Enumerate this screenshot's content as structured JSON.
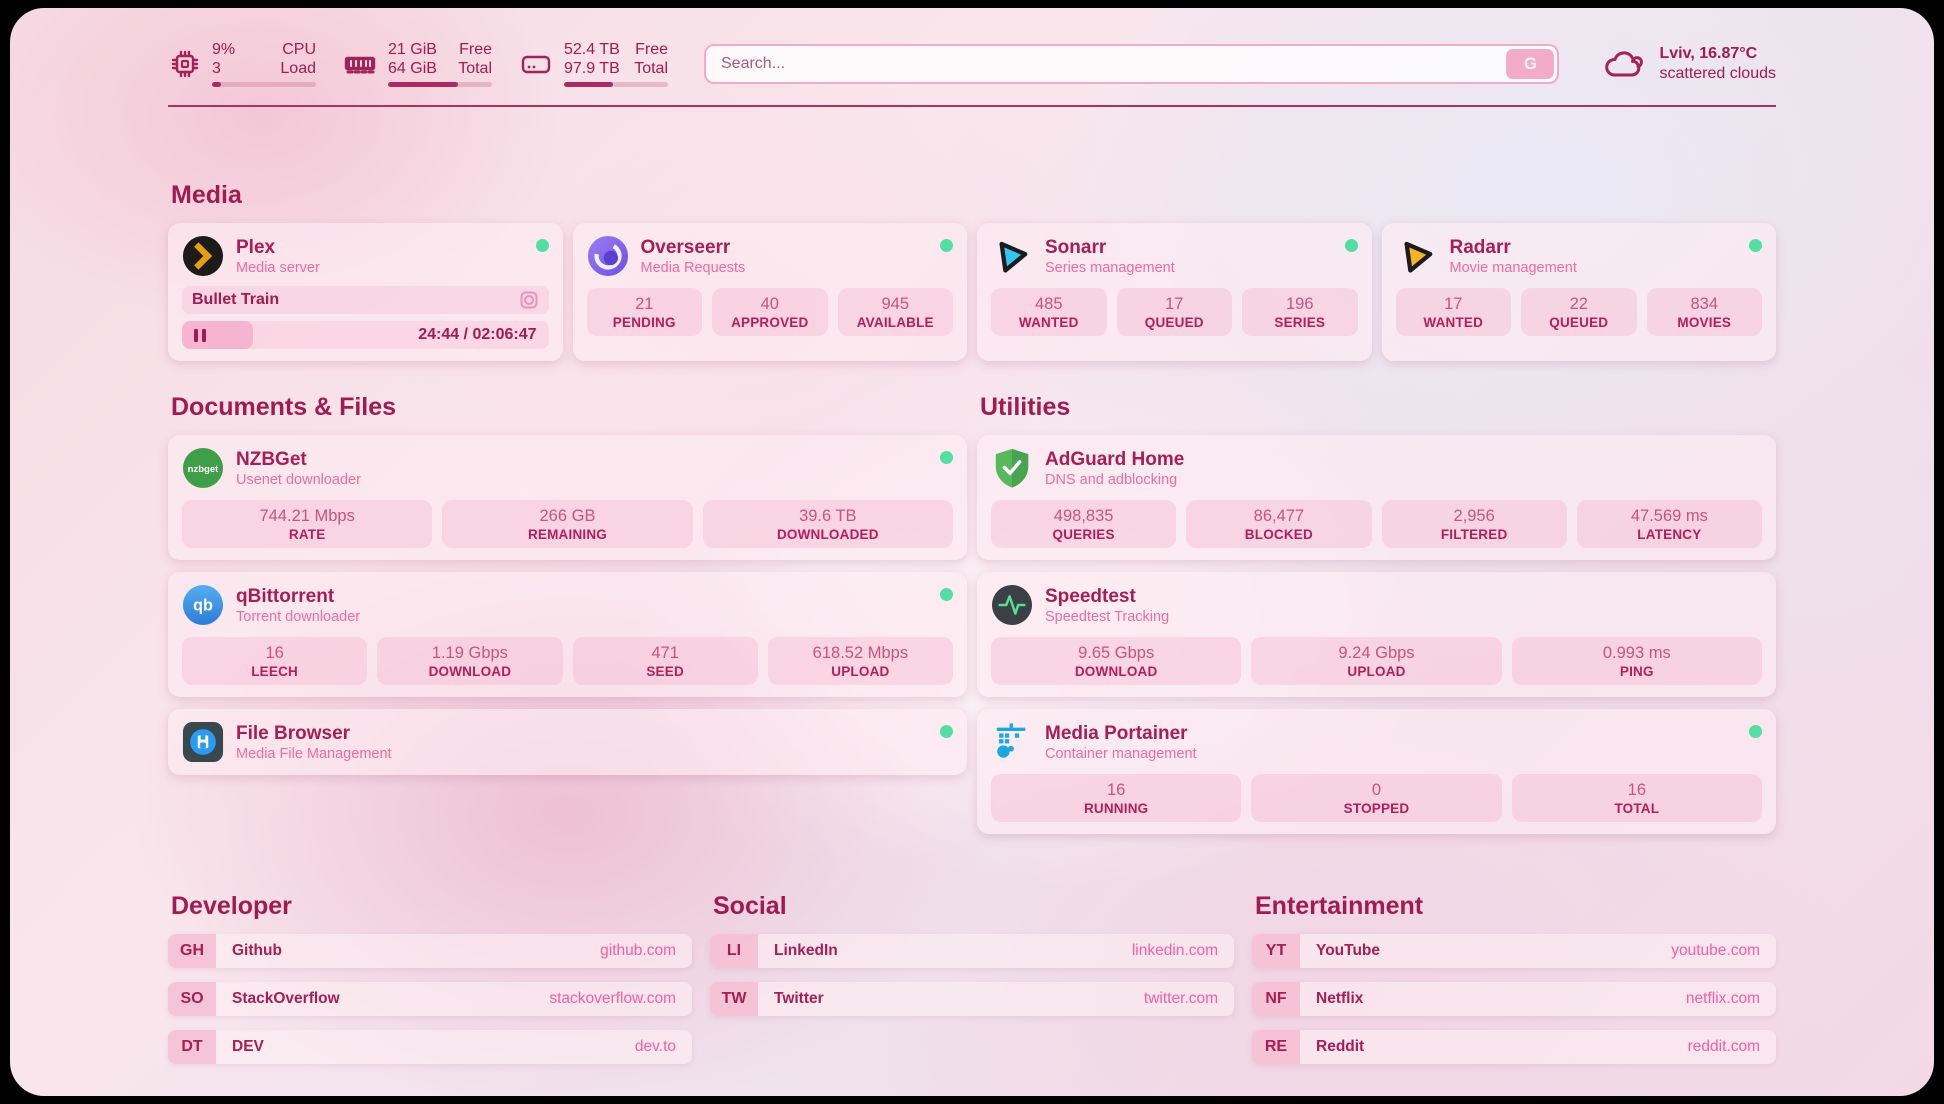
{
  "colors": {
    "accent": "#a01b51",
    "online_green": "#53dfa2",
    "link_pink": "#f160a2"
  },
  "header": {
    "stats": [
      {
        "icon": "cpu-icon",
        "v1": "9%",
        "l1": "CPU",
        "v2": "3",
        "l2": "Load",
        "progress": 9
      },
      {
        "icon": "ram-icon",
        "v1": "21 GiB",
        "l1": "Free",
        "v2": "64 GiB",
        "l2": "Total",
        "progress": 67
      },
      {
        "icon": "disk-icon",
        "v1": "52.4 TB",
        "l1": "Free",
        "v2": "97.9 TB",
        "l2": "Total",
        "progress": 47
      }
    ],
    "search": {
      "placeholder": "Search...",
      "button_label": "G"
    },
    "weather": {
      "icon": "cloud-icon",
      "line1": "Lviv, 16.87°C",
      "line2": "scattered clouds"
    }
  },
  "media": {
    "title": "Media",
    "plex": {
      "name": "Plex",
      "desc": "Media server",
      "online": true,
      "now_playing": {
        "title": "Bullet Train",
        "time": "24:44 / 02:06:47",
        "progress": 19.5
      }
    },
    "overseerr": {
      "name": "Overseerr",
      "desc": "Media Requests",
      "online": true,
      "stats": [
        {
          "value": "21",
          "label": "PENDING"
        },
        {
          "value": "40",
          "label": "APPROVED"
        },
        {
          "value": "945",
          "label": "AVAILABLE"
        }
      ]
    },
    "sonarr": {
      "name": "Sonarr",
      "desc": "Series management",
      "online": true,
      "stats": [
        {
          "value": "485",
          "label": "WANTED"
        },
        {
          "value": "17",
          "label": "QUEUED"
        },
        {
          "value": "196",
          "label": "SERIES"
        }
      ]
    },
    "radarr": {
      "name": "Radarr",
      "desc": "Movie management",
      "online": true,
      "stats": [
        {
          "value": "17",
          "label": "WANTED"
        },
        {
          "value": "22",
          "label": "QUEUED"
        },
        {
          "value": "834",
          "label": "MOVIES"
        }
      ]
    }
  },
  "documents": {
    "title": "Documents & Files",
    "nzbget": {
      "name": "NZBGet",
      "desc": "Usenet downloader",
      "online": true,
      "stats": [
        {
          "value": "744.21 Mbps",
          "label": "RATE"
        },
        {
          "value": "266 GB",
          "label": "REMAINING"
        },
        {
          "value": "39.6 TB",
          "label": "DOWNLOADED"
        }
      ]
    },
    "qbittorrent": {
      "name": "qBittorrent",
      "desc": "Torrent downloader",
      "online": true,
      "stats": [
        {
          "value": "16",
          "label": "LEECH"
        },
        {
          "value": "1.19 Gbps",
          "label": "DOWNLOAD"
        },
        {
          "value": "471",
          "label": "SEED"
        },
        {
          "value": "618.52 Mbps",
          "label": "UPLOAD"
        }
      ]
    },
    "filebrowser": {
      "name": "File Browser",
      "desc": "Media File Management",
      "online": true
    }
  },
  "utilities": {
    "title": "Utilities",
    "adguard": {
      "name": "AdGuard Home",
      "desc": "DNS and adblocking",
      "stats": [
        {
          "value": "498,835",
          "label": "QUERIES"
        },
        {
          "value": "86,477",
          "label": "BLOCKED"
        },
        {
          "value": "2,956",
          "label": "FILTERED"
        },
        {
          "value": "47.569 ms",
          "label": "LATENCY"
        }
      ]
    },
    "speedtest": {
      "name": "Speedtest",
      "desc": "Speedtest Tracking",
      "stats": [
        {
          "value": "9.65 Gbps",
          "label": "DOWNLOAD"
        },
        {
          "value": "9.24 Gbps",
          "label": "UPLOAD"
        },
        {
          "value": "0.993 ms",
          "label": "PING"
        }
      ]
    },
    "portainer": {
      "name": "Media Portainer",
      "desc": "Container management",
      "online": true,
      "stats": [
        {
          "value": "16",
          "label": "RUNNING"
        },
        {
          "value": "0",
          "label": "STOPPED"
        },
        {
          "value": "16",
          "label": "TOTAL"
        }
      ]
    }
  },
  "bookmarks": {
    "developer": {
      "title": "Developer",
      "items": [
        {
          "abbr": "GH",
          "name": "Github",
          "url": "github.com"
        },
        {
          "abbr": "SO",
          "name": "StackOverflow",
          "url": "stackoverflow.com"
        },
        {
          "abbr": "DT",
          "name": "DEV",
          "url": "dev.to"
        }
      ]
    },
    "social": {
      "title": "Social",
      "items": [
        {
          "abbr": "LI",
          "name": "LinkedIn",
          "url": "linkedin.com"
        },
        {
          "abbr": "TW",
          "name": "Twitter",
          "url": "twitter.com"
        }
      ]
    },
    "entertainment": {
      "title": "Entertainment",
      "items": [
        {
          "abbr": "YT",
          "name": "YouTube",
          "url": "youtube.com"
        },
        {
          "abbr": "NF",
          "name": "Netflix",
          "url": "netflix.com"
        },
        {
          "abbr": "RE",
          "name": "Reddit",
          "url": "reddit.com"
        }
      ]
    }
  }
}
